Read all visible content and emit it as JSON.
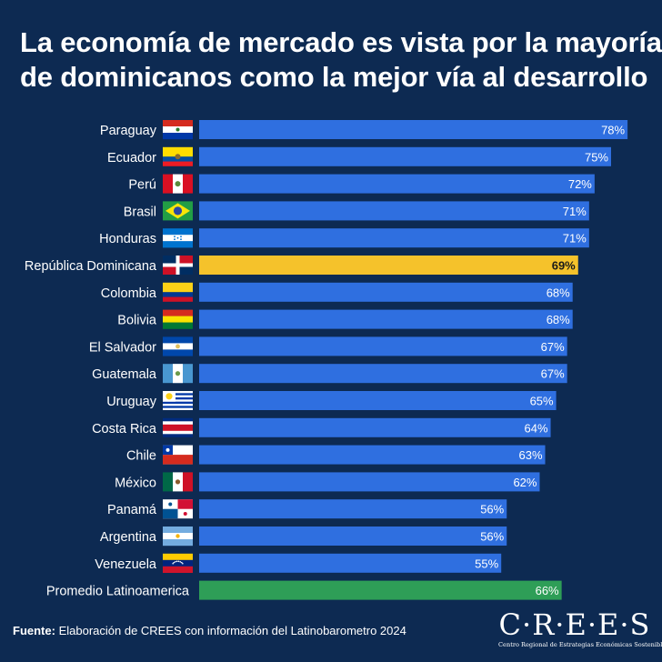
{
  "title_line1": "La economía de mercado es vista por la mayoría",
  "title_line2": "de dominicanos como la mejor vía al desarrollo",
  "footer": {
    "label": "Fuente:",
    "text": " Elaboración de CREES con información del Latinobarometro 2024"
  },
  "logo": {
    "wordmark": "C·R·E·E·S",
    "subtitle": "Centro Regional de Estrategias Económicas Sostenibles"
  },
  "colors": {
    "background": "#0d2a52",
    "bar_default": "#2f6fe0",
    "bar_highlight": "#f5c22b",
    "bar_average": "#2e9e57"
  },
  "chart_data": {
    "type": "bar",
    "orientation": "horizontal",
    "categories": [
      "Paraguay",
      "Ecuador",
      "Perú",
      "Brasil",
      "Honduras",
      "República Dominicana",
      "Colombia",
      "Bolivia",
      "El Salvador",
      "Guatemala",
      "Uruguay",
      "Costa Rica",
      "Chile",
      "México",
      "Panamá",
      "Argentina",
      "Venezuela",
      "Promedio Latinoamerica"
    ],
    "values": [
      78,
      75,
      72,
      71,
      71,
      69,
      68,
      68,
      67,
      67,
      65,
      64,
      63,
      62,
      56,
      56,
      55,
      66
    ],
    "value_labels": [
      "78%",
      "75%",
      "72%",
      "71%",
      "71%",
      "69%",
      "68%",
      "68%",
      "67%",
      "67%",
      "65%",
      "64%",
      "63%",
      "62%",
      "56%",
      "56%",
      "55%",
      "66%"
    ],
    "highlight": "República Dominicana",
    "average": "Promedio Latinoamerica",
    "flags": [
      "paraguay-flag",
      "ecuador-flag",
      "peru-flag",
      "brasil-flag",
      "honduras-flag",
      "dominican-republic-flag",
      "colombia-flag",
      "bolivia-flag",
      "el-salvador-flag",
      "guatemala-flag",
      "uruguay-flag",
      "costa-rica-flag",
      "chile-flag",
      "mexico-flag",
      "panama-flag",
      "argentina-flag",
      "venezuela-flag",
      ""
    ],
    "xlim": [
      0,
      100
    ],
    "xlabel": "",
    "ylabel": "",
    "grid": false
  }
}
